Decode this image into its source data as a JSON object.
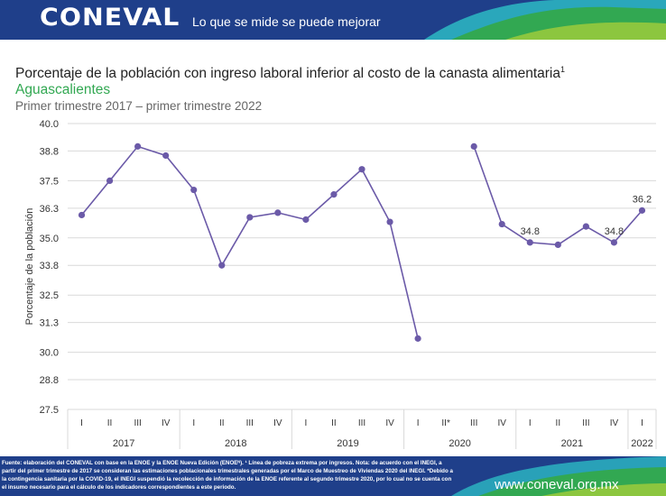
{
  "header": {
    "logo": "CONEVAL",
    "slogan": "Lo que se mide se puede mejorar"
  },
  "chart_data": {
    "type": "line",
    "title": "Porcentaje de la población con ingreso laboral inferior al costo de la canasta alimentaria",
    "title_sup": "1",
    "subtitle": "Aguascalientes",
    "period": "Primer trimestre 2017 – primer trimestre 2022",
    "ylabel": "Porcentaje de la población",
    "ylim": [
      27.5,
      40.0
    ],
    "yticks": [
      "40.0",
      "38.8",
      "37.5",
      "36.3",
      "35.0",
      "33.8",
      "32.5",
      "31.3",
      "30.0",
      "28.8",
      "27.5"
    ],
    "quarters": [
      "I",
      "II",
      "III",
      "IV",
      "I",
      "II",
      "III",
      "IV",
      "I",
      "II",
      "III",
      "IV",
      "I",
      "II*",
      "III",
      "IV",
      "I",
      "II",
      "III",
      "IV",
      "I"
    ],
    "years": [
      {
        "label": "2017",
        "start": 0,
        "end": 3
      },
      {
        "label": "2018",
        "start": 4,
        "end": 7
      },
      {
        "label": "2019",
        "start": 8,
        "end": 11
      },
      {
        "label": "2020",
        "start": 12,
        "end": 15
      },
      {
        "label": "2021",
        "start": 16,
        "end": 19
      },
      {
        "label": "2022",
        "start": 20,
        "end": 20
      }
    ],
    "values": [
      36.0,
      37.5,
      39.0,
      38.6,
      37.1,
      33.8,
      35.9,
      36.1,
      35.8,
      36.9,
      38.0,
      35.7,
      30.6,
      null,
      39.0,
      35.6,
      34.8,
      34.7,
      35.5,
      34.8,
      36.2
    ],
    "data_labels": [
      {
        "index": 16,
        "text": "34.8"
      },
      {
        "index": 19,
        "text": "34.8"
      },
      {
        "index": 20,
        "text": "36.2"
      }
    ],
    "color": "#6b5aa8",
    "grid": "horizontal",
    "legend": "none"
  },
  "footer": {
    "source": "Fuente: elaboración del CONEVAL con base en la ENOE y la ENOE Nueva Edición (ENOEᴺ). ¹ Línea de pobreza extrema por ingresos. Nota: de acuerdo con el INEGI, a partir del primer trimestre de 2017 se consideran las estimaciones poblacionales trimestrales generadas por el Marco de Muestreo de Viviendas 2020 del INEGI. *Debido a la contingencia sanitaria por la COVID-19, el INEGI suspendió la recolección de información de la ENOE referente al segundo trimestre 2020, por lo cual no se cuenta con el insumo necesario para el cálculo de los indicadores correspondientes a este periodo.",
    "website": "www.coneval.org.mx"
  },
  "colors": {
    "brand_blue": "#1f3f8a",
    "brand_green": "#32a852",
    "brand_teal": "#2bb3c0"
  }
}
